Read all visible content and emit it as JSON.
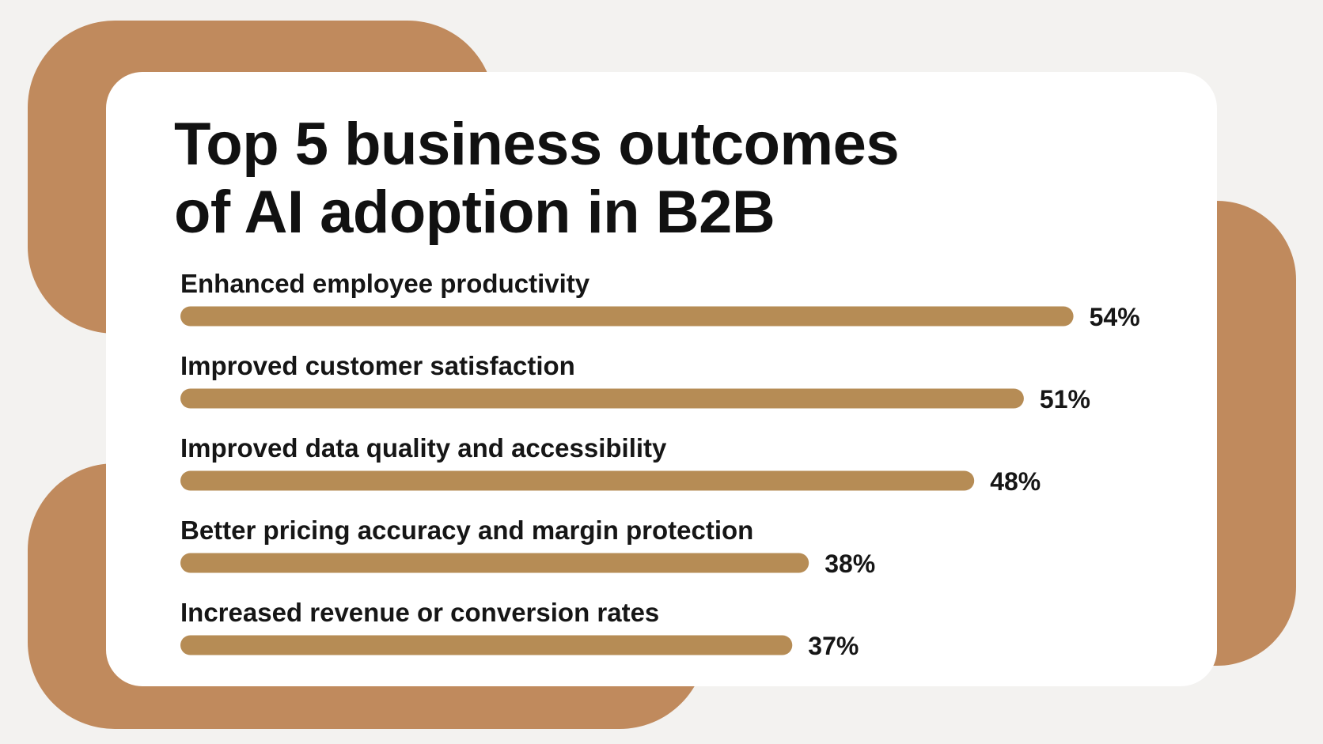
{
  "colors": {
    "background": "#f3f2f0",
    "decoration": "#c08a5d",
    "card": "#ffffff",
    "bar": "#b68c55",
    "text": "#161616"
  },
  "chart_data": {
    "type": "bar",
    "orientation": "horizontal",
    "title_lines": [
      "Top 5 business outcomes",
      "of AI adoption in B2B"
    ],
    "categories": [
      "Enhanced employee productivity",
      "Improved customer satisfaction",
      "Improved data quality and accessibility",
      "Better pricing accuracy and margin protection",
      "Increased revenue or conversion rates"
    ],
    "values": [
      54,
      51,
      48,
      38,
      37
    ],
    "value_labels": [
      "54%",
      "51%",
      "48%",
      "38%",
      "37%"
    ],
    "unit": "%",
    "grid": false,
    "legend": "none"
  }
}
